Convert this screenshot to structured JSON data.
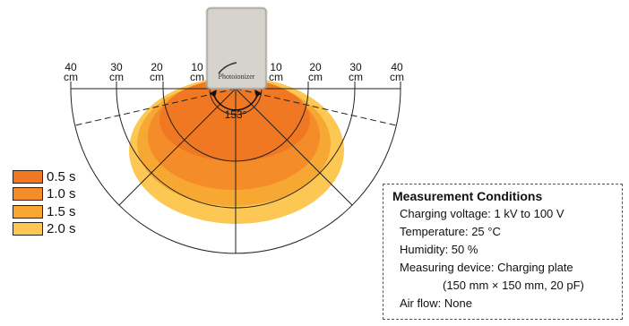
{
  "device": {
    "name": "Photoionizer"
  },
  "distance_labels": {
    "left": [
      {
        "value": "40",
        "unit": "cm"
      },
      {
        "value": "30",
        "unit": "cm"
      },
      {
        "value": "20",
        "unit": "cm"
      },
      {
        "value": "10",
        "unit": "cm"
      }
    ],
    "right": [
      {
        "value": "10",
        "unit": "cm"
      },
      {
        "value": "20",
        "unit": "cm"
      },
      {
        "value": "30",
        "unit": "cm"
      },
      {
        "value": "40",
        "unit": "cm"
      }
    ]
  },
  "angle_label": "153°",
  "legend": [
    {
      "label": "0.5 s",
      "color": "#f07822"
    },
    {
      "label": "1.0 s",
      "color": "#f48c2a"
    },
    {
      "label": "1.5 s",
      "color": "#f7a832"
    },
    {
      "label": "2.0 s",
      "color": "#fcc752"
    }
  ],
  "conditions": {
    "title": "Measurement Conditions",
    "lines": [
      "Charging voltage: 1 kV to 100 V",
      "Temperature: 25 °C",
      "Humidity: 50 %",
      "Measuring device: Charging plate",
      "(150 mm × 150 mm,  20 pF)",
      "Air flow: None"
    ]
  }
}
